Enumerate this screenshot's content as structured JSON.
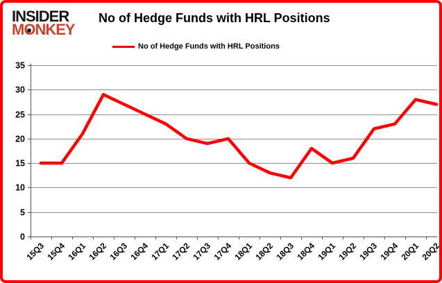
{
  "logo": {
    "line1": "INSIDER",
    "line2": "MONKEY"
  },
  "title": "No of Hedge Funds with HRL Positions",
  "legend": {
    "label": "No of Hedge Funds with HRL Positions",
    "swatch_color": "#e60000"
  },
  "colors": {
    "border": "#ff0000",
    "line": "#fe0000",
    "grid": "#8c8c8c",
    "axis": "#4d4d4d",
    "tick_label": "#000000",
    "logo_black": "#161616",
    "logo_red": "#c7452f"
  },
  "chart_data": {
    "type": "line",
    "title": "No of Hedge Funds with HRL Positions",
    "categories": [
      "15Q3",
      "15Q4",
      "16Q1",
      "16Q2",
      "16Q3",
      "16Q4",
      "17Q1",
      "17Q2",
      "17Q3",
      "17Q4",
      "18Q1",
      "18Q2",
      "18Q3",
      "18Q4",
      "19Q1",
      "19Q2",
      "19Q3",
      "19Q4",
      "20Q1",
      "20Q2"
    ],
    "series": [
      {
        "name": "No of Hedge Funds with HRL Positions",
        "values": [
          15,
          15,
          21,
          29,
          27,
          25,
          23,
          20,
          19,
          20,
          15,
          13,
          12,
          18,
          15,
          16,
          22,
          23,
          28,
          27
        ]
      }
    ],
    "xlabel": "",
    "ylabel": "",
    "ylim": [
      0,
      35
    ],
    "ytick_step": 5,
    "grid": true,
    "legend_position": "top"
  }
}
